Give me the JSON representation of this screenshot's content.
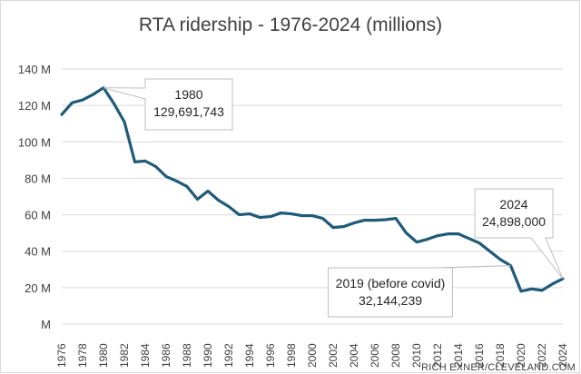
{
  "chart_data": {
    "type": "line",
    "title": "RTA ridership - 1976-2024 (millions)",
    "xlabel": "",
    "ylabel": "",
    "x": [
      1976,
      1977,
      1978,
      1979,
      1980,
      1981,
      1982,
      1983,
      1984,
      1985,
      1986,
      1987,
      1988,
      1989,
      1990,
      1991,
      1992,
      1993,
      1994,
      1995,
      1996,
      1997,
      1998,
      1999,
      2000,
      2001,
      2002,
      2003,
      2004,
      2005,
      2006,
      2007,
      2008,
      2009,
      2010,
      2011,
      2012,
      2013,
      2014,
      2015,
      2016,
      2017,
      2018,
      2019,
      2020,
      2021,
      2022,
      2023,
      2024
    ],
    "series": [
      {
        "name": "",
        "color": "#1f5a78",
        "values": [
          115,
          121.5,
          123,
          126,
          129.7,
          121,
          111,
          89,
          89.5,
          86.5,
          81,
          78.5,
          75.5,
          68.5,
          73,
          68,
          64.5,
          60,
          60.5,
          58.5,
          59,
          61,
          60.5,
          59.5,
          59.5,
          58,
          53,
          53.5,
          55.5,
          57,
          57,
          57.3,
          58,
          50,
          45,
          46.5,
          48.5,
          49.5,
          49.5,
          47,
          44.5,
          40,
          35.5,
          32.1,
          18,
          19.3,
          18.5,
          22,
          24.9
        ]
      }
    ],
    "ylim": [
      0,
      140
    ],
    "yticks": [
      0,
      20,
      40,
      60,
      80,
      100,
      120,
      140
    ],
    "ytick_labels": [
      "M",
      "20 M",
      "40 M",
      "60 M",
      "80 M",
      "100 M",
      "120 M",
      "140 M"
    ],
    "xtick_labels": [
      "1976",
      "1978",
      "1980",
      "1982",
      "1984",
      "1986",
      "1988",
      "1990",
      "1992",
      "1994",
      "1996",
      "1998",
      "2000",
      "2002",
      "2004",
      "2006",
      "2008",
      "2010",
      "2012",
      "2014",
      "2016",
      "2018",
      "2020",
      "2022",
      "2024"
    ],
    "grid": true,
    "legend": "none",
    "annotations": [
      {
        "x": 1980,
        "y": 129.7,
        "lines": [
          "1980",
          "129,691,743"
        ]
      },
      {
        "x": 2019,
        "y": 32.1,
        "lines": [
          "2019 (before covid)",
          "32,144,239"
        ]
      },
      {
        "x": 2024,
        "y": 24.9,
        "lines": [
          "2024",
          "24,898,000"
        ]
      }
    ]
  },
  "credit": "RICH EXNER/CLEVELAND.COM",
  "colors": {
    "line": "#1f5a78",
    "grid": "#d9d9d9",
    "text": "#404040",
    "callout_border": "#bfbfbf"
  }
}
